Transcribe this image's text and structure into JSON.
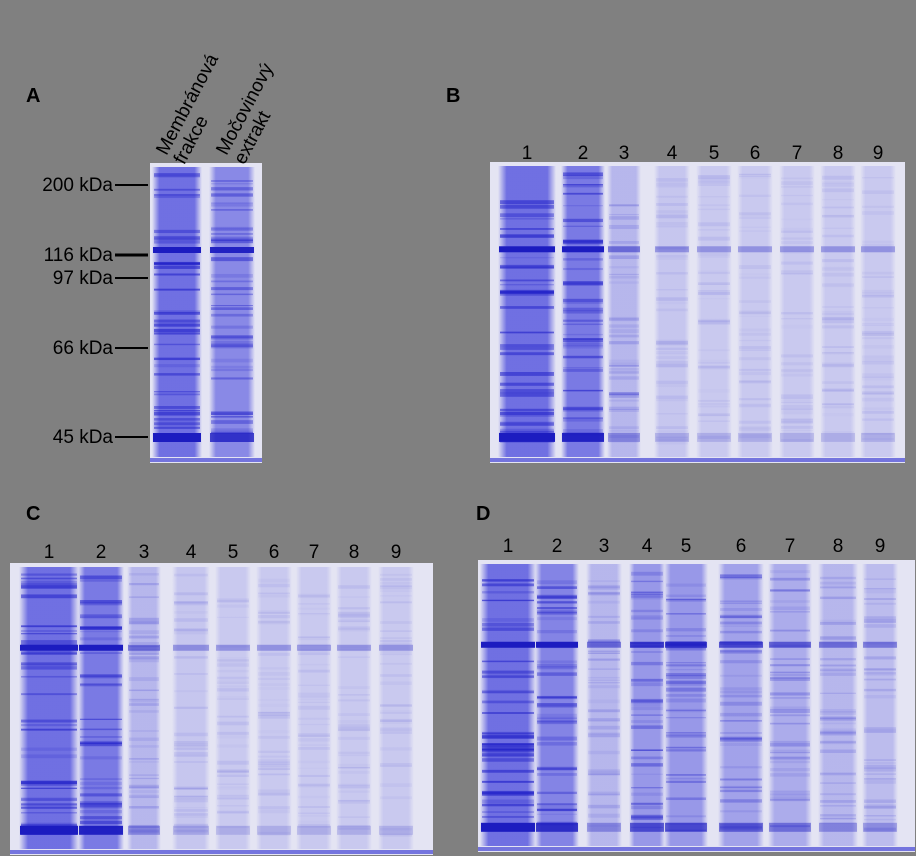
{
  "panels": [
    {
      "label": "A",
      "markers": [
        "200 kDa",
        "116 kDa",
        "97 kDa",
        "66 kDa",
        "45 kDa"
      ],
      "lanes": [
        [
          "Membránová",
          "frakce"
        ],
        [
          "Močovinový",
          "extrakt"
        ]
      ]
    },
    {
      "label": "B",
      "lanes": [
        "1",
        "2",
        "3",
        "4",
        "5",
        "6",
        "7",
        "8",
        "9"
      ]
    },
    {
      "label": "C",
      "lanes": [
        "1",
        "2",
        "3",
        "4",
        "5",
        "6",
        "7",
        "8",
        "9"
      ]
    },
    {
      "label": "D",
      "lanes": [
        "1",
        "2",
        "3",
        "4",
        "5",
        "6",
        "7",
        "8",
        "9"
      ]
    }
  ]
}
